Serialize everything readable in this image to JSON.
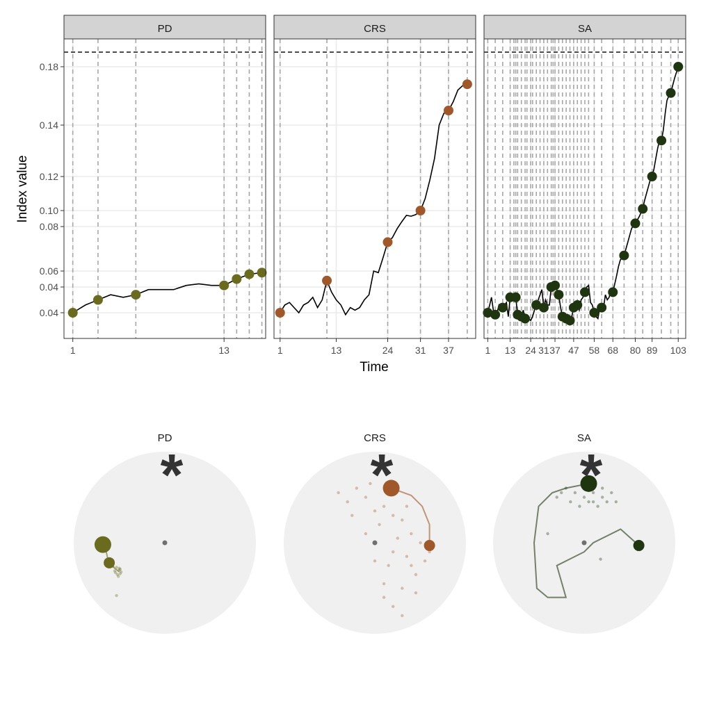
{
  "colors": {
    "PD": "#6b6b1f",
    "CRS": "#a0582a",
    "SA": "#1f3510",
    "strip_bg": "#d3d3d3",
    "grid": "#ebebeb",
    "disc_bg": "#f0f0f0",
    "center_dot": "#707070"
  },
  "chart_data": [
    {
      "type": "line",
      "panel_set": "index-over-time",
      "xlabel": "Time",
      "ylabel": "Index value",
      "y_tick_labels": [
        "0.04",
        "0.04",
        "0.06",
        "0.08",
        "0.10",
        "0.12",
        "0.14",
        "0.18"
      ],
      "reference_line": "dashed horizontal line above highest value",
      "panels": [
        {
          "name": "PD",
          "x_ticks": [
            1,
            13
          ],
          "xlim": [
            0.3,
            16.3
          ],
          "milestone_x": [
            1,
            3,
            6,
            13,
            14,
            15,
            16
          ],
          "series": {
            "x": [
              1,
              2,
              3,
              4,
              5,
              6,
              7,
              8,
              9,
              10,
              11,
              12,
              13,
              14,
              15,
              16
            ],
            "y": [
              0.04,
              0.043,
              0.045,
              0.047,
              0.046,
              0.047,
              0.049,
              0.049,
              0.049,
              0.051,
              0.052,
              0.051,
              0.051,
              0.055,
              0.058,
              0.059
            ]
          },
          "points": [
            {
              "x": 1,
              "y": 0.04
            },
            {
              "x": 3,
              "y": 0.045
            },
            {
              "x": 6,
              "y": 0.047
            },
            {
              "x": 13,
              "y": 0.051
            },
            {
              "x": 14,
              "y": 0.055
            },
            {
              "x": 15,
              "y": 0.058
            },
            {
              "x": 16,
              "y": 0.059
            }
          ]
        },
        {
          "name": "CRS",
          "x_ticks": [
            1,
            13,
            24,
            31,
            37
          ],
          "xlim": [
            -0.3,
            42.8
          ],
          "milestone_x": [
            1,
            11,
            24,
            31,
            37,
            41
          ],
          "series": {
            "x": [
              1,
              2,
              3,
              4,
              5,
              6,
              7,
              8,
              9,
              10,
              11,
              12,
              13,
              14,
              15,
              16,
              17,
              18,
              19,
              20,
              21,
              22,
              23,
              24,
              25,
              26,
              27,
              28,
              29,
              30,
              31,
              32,
              33,
              34,
              35,
              36,
              37,
              38,
              39,
              40,
              41
            ],
            "y": [
              0.04,
              0.043,
              0.044,
              0.042,
              0.04,
              0.043,
              0.044,
              0.046,
              0.042,
              0.045,
              0.054,
              0.048,
              0.045,
              0.043,
              0.039,
              0.042,
              0.041,
              0.042,
              0.045,
              0.047,
              0.06,
              0.059,
              0.066,
              0.073,
              0.075,
              0.079,
              0.086,
              0.094,
              0.093,
              0.095,
              0.1,
              0.107,
              0.118,
              0.127,
              0.14,
              0.148,
              0.15,
              0.156,
              0.164,
              0.167,
              0.168
            ]
          },
          "points": [
            {
              "x": 1,
              "y": 0.04
            },
            {
              "x": 11,
              "y": 0.054
            },
            {
              "x": 24,
              "y": 0.073
            },
            {
              "x": 31,
              "y": 0.1
            },
            {
              "x": 37,
              "y": 0.15
            },
            {
              "x": 41,
              "y": 0.168
            }
          ]
        },
        {
          "name": "SA",
          "x_ticks": [
            1,
            13,
            24,
            31,
            37,
            47,
            58,
            68,
            80,
            89,
            103
          ],
          "x_tick_labels": [
            "1",
            "13",
            "24",
            "31",
            "37",
            "47",
            "58",
            "68",
            "80",
            "89",
            "103"
          ],
          "xlim": [
            -1,
            107
          ],
          "milestone_x": [
            1,
            5,
            9,
            13,
            15,
            16,
            17,
            19,
            21,
            22,
            24,
            25,
            27,
            29,
            31,
            33,
            35,
            36,
            37,
            39,
            41,
            43,
            45,
            47,
            49,
            51,
            53,
            55,
            58,
            62,
            68,
            74,
            80,
            84,
            89,
            94,
            99,
            103
          ],
          "series": {
            "x": [
              1,
              2,
              3,
              4,
              5,
              6,
              7,
              8,
              9,
              10,
              11,
              12,
              13,
              14,
              15,
              16,
              17,
              18,
              19,
              20,
              21,
              22,
              23,
              24,
              25,
              26,
              27,
              28,
              29,
              30,
              31,
              32,
              33,
              34,
              35,
              36,
              37,
              38,
              39,
              40,
              41,
              42,
              43,
              44,
              45,
              46,
              47,
              48,
              49,
              50,
              51,
              52,
              53,
              54,
              55,
              56,
              57,
              58,
              59,
              60,
              61,
              62,
              63,
              64,
              65,
              66,
              67,
              68,
              69,
              70,
              71,
              72,
              73,
              74,
              75,
              76,
              77,
              78,
              79,
              80,
              81,
              82,
              83,
              84,
              85,
              86,
              87,
              88,
              89,
              90,
              91,
              92,
              93,
              94,
              95,
              96,
              97,
              98,
              99,
              100,
              101,
              102,
              103
            ],
            "y": [
              0.04,
              0.043,
              0.046,
              0.041,
              0.039,
              0.04,
              0.043,
              0.042,
              0.042,
              0.043,
              0.044,
              0.038,
              0.046,
              0.045,
              0.046,
              0.046,
              0.039,
              0.038,
              0.038,
              0.041,
              0.037,
              0.036,
              0.037,
              0.036,
              0.038,
              0.041,
              0.043,
              0.045,
              0.047,
              0.049,
              0.042,
              0.045,
              0.043,
              0.043,
              0.05,
              0.052,
              0.051,
              0.049,
              0.047,
              0.042,
              0.038,
              0.036,
              0.037,
              0.037,
              0.036,
              0.038,
              0.042,
              0.044,
              0.043,
              0.041,
              0.045,
              0.046,
              0.048,
              0.05,
              0.051,
              0.044,
              0.043,
              0.04,
              0.038,
              0.037,
              0.042,
              0.043,
              0.042,
              0.047,
              0.045,
              0.046,
              0.049,
              0.048,
              0.052,
              0.057,
              0.062,
              0.065,
              0.066,
              0.067,
              0.07,
              0.073,
              0.076,
              0.079,
              0.082,
              0.084,
              0.088,
              0.092,
              0.097,
              0.101,
              0.106,
              0.11,
              0.114,
              0.118,
              0.12,
              0.123,
              0.127,
              0.131,
              0.134,
              0.134,
              0.138,
              0.148,
              0.157,
              0.16,
              0.162,
              0.167,
              0.172,
              0.176,
              0.18
            ]
          },
          "points": [
            {
              "x": 1,
              "y": 0.04
            },
            {
              "x": 5,
              "y": 0.039
            },
            {
              "x": 9,
              "y": 0.042
            },
            {
              "x": 13,
              "y": 0.046
            },
            {
              "x": 16,
              "y": 0.046
            },
            {
              "x": 17,
              "y": 0.039
            },
            {
              "x": 19,
              "y": 0.038
            },
            {
              "x": 21,
              "y": 0.037
            },
            {
              "x": 27,
              "y": 0.043
            },
            {
              "x": 31,
              "y": 0.042
            },
            {
              "x": 35,
              "y": 0.05
            },
            {
              "x": 37,
              "y": 0.051
            },
            {
              "x": 39,
              "y": 0.047
            },
            {
              "x": 41,
              "y": 0.038
            },
            {
              "x": 43,
              "y": 0.037
            },
            {
              "x": 45,
              "y": 0.036
            },
            {
              "x": 47,
              "y": 0.042
            },
            {
              "x": 49,
              "y": 0.043
            },
            {
              "x": 53,
              "y": 0.048
            },
            {
              "x": 58,
              "y": 0.04
            },
            {
              "x": 62,
              "y": 0.042
            },
            {
              "x": 68,
              "y": 0.048
            },
            {
              "x": 74,
              "y": 0.067
            },
            {
              "x": 80,
              "y": 0.084
            },
            {
              "x": 84,
              "y": 0.101
            },
            {
              "x": 89,
              "y": 0.12
            },
            {
              "x": 94,
              "y": 0.134
            },
            {
              "x": 99,
              "y": 0.162
            },
            {
              "x": 103,
              "y": 0.18
            }
          ]
        }
      ]
    },
    {
      "type": "scatter",
      "panel_set": "trajectory-discs",
      "description_free": true,
      "marker_label": "*",
      "panels": [
        {
          "name": "PD",
          "path": [
            [
              -0.68,
              -0.02
            ],
            [
              -0.66,
              -0.03
            ],
            [
              -0.62,
              -0.2
            ],
            [
              -0.55,
              -0.28
            ],
            [
              -0.5,
              -0.32
            ]
          ],
          "big_points": [
            [
              -0.68,
              -0.02
            ],
            [
              -0.61,
              -0.22
            ]
          ],
          "cloud": [
            [
              -0.53,
              -0.27
            ],
            [
              -0.5,
              -0.3
            ],
            [
              -0.55,
              -0.31
            ],
            [
              -0.49,
              -0.34
            ],
            [
              -0.52,
              -0.35
            ],
            [
              -0.57,
              -0.26
            ],
            [
              -0.5,
              -0.28
            ],
            [
              -0.54,
              -0.33
            ],
            [
              -0.48,
              -0.32
            ],
            [
              -0.51,
              -0.37
            ],
            [
              -0.53,
              -0.58
            ],
            [
              -0.58,
              -0.24
            ],
            [
              -0.49,
              -0.29
            ]
          ]
        },
        {
          "name": "CRS",
          "path": [
            [
              0.18,
              0.6
            ],
            [
              0.4,
              0.52
            ],
            [
              0.52,
              0.4
            ],
            [
              0.6,
              0.2
            ],
            [
              0.6,
              0.0
            ]
          ],
          "big_points": [
            [
              0.18,
              0.6
            ],
            [
              0.6,
              -0.03
            ]
          ],
          "cloud": [
            [
              -0.4,
              0.55
            ],
            [
              -0.3,
              0.45
            ],
            [
              -0.2,
              0.6
            ],
            [
              -0.1,
              0.5
            ],
            [
              0.0,
              0.35
            ],
            [
              0.1,
              0.4
            ],
            [
              0.2,
              0.3
            ],
            [
              0.3,
              0.25
            ],
            [
              0.4,
              0.1
            ],
            [
              0.5,
              0.0
            ],
            [
              0.55,
              -0.2
            ],
            [
              0.45,
              -0.35
            ],
            [
              0.3,
              -0.5
            ],
            [
              0.2,
              -0.7
            ],
            [
              0.1,
              -0.45
            ],
            [
              0.0,
              -0.2
            ],
            [
              -0.1,
              0.1
            ],
            [
              0.25,
              0.05
            ],
            [
              0.35,
              -0.15
            ],
            [
              0.15,
              -0.25
            ],
            [
              0.05,
              0.2
            ],
            [
              -0.25,
              0.3
            ],
            [
              0.45,
              -0.55
            ],
            [
              0.3,
              -0.8
            ],
            [
              0.6,
              -0.1
            ],
            [
              0.4,
              -0.25
            ],
            [
              0.2,
              -0.1
            ],
            [
              0.1,
              -0.6
            ],
            [
              0.35,
              0.4
            ],
            [
              -0.05,
              0.65
            ]
          ]
        },
        {
          "name": "SA",
          "path": [
            [
              0.05,
              0.65
            ],
            [
              -0.2,
              0.6
            ],
            [
              -0.35,
              0.55
            ],
            [
              -0.5,
              0.4
            ],
            [
              -0.55,
              0.0
            ],
            [
              -0.52,
              -0.5
            ],
            [
              -0.4,
              -0.6
            ],
            [
              -0.2,
              -0.6
            ],
            [
              -0.3,
              -0.25
            ],
            [
              0.0,
              -0.1
            ],
            [
              0.1,
              0.0
            ],
            [
              0.4,
              0.15
            ],
            [
              0.6,
              -0.03
            ]
          ],
          "big_points": [
            [
              0.05,
              0.65
            ],
            [
              0.6,
              -0.03
            ]
          ],
          "cloud": [
            [
              -0.2,
              0.6
            ],
            [
              -0.1,
              0.55
            ],
            [
              0.0,
              0.5
            ],
            [
              0.1,
              0.55
            ],
            [
              0.2,
              0.5
            ],
            [
              0.25,
              0.45
            ],
            [
              -0.15,
              0.45
            ],
            [
              0.05,
              0.45
            ],
            [
              0.15,
              0.4
            ],
            [
              -0.05,
              0.4
            ],
            [
              0.3,
              0.55
            ],
            [
              -0.3,
              0.5
            ],
            [
              0.2,
              0.6
            ],
            [
              -0.25,
              0.55
            ],
            [
              0.35,
              0.45
            ],
            [
              -0.4,
              0.1
            ],
            [
              0.0,
              0.6
            ],
            [
              0.1,
              0.45
            ],
            [
              0.18,
              -0.18
            ]
          ]
        }
      ]
    }
  ],
  "panel_titles": {
    "PD": "PD",
    "CRS": "CRS",
    "SA": "SA"
  }
}
